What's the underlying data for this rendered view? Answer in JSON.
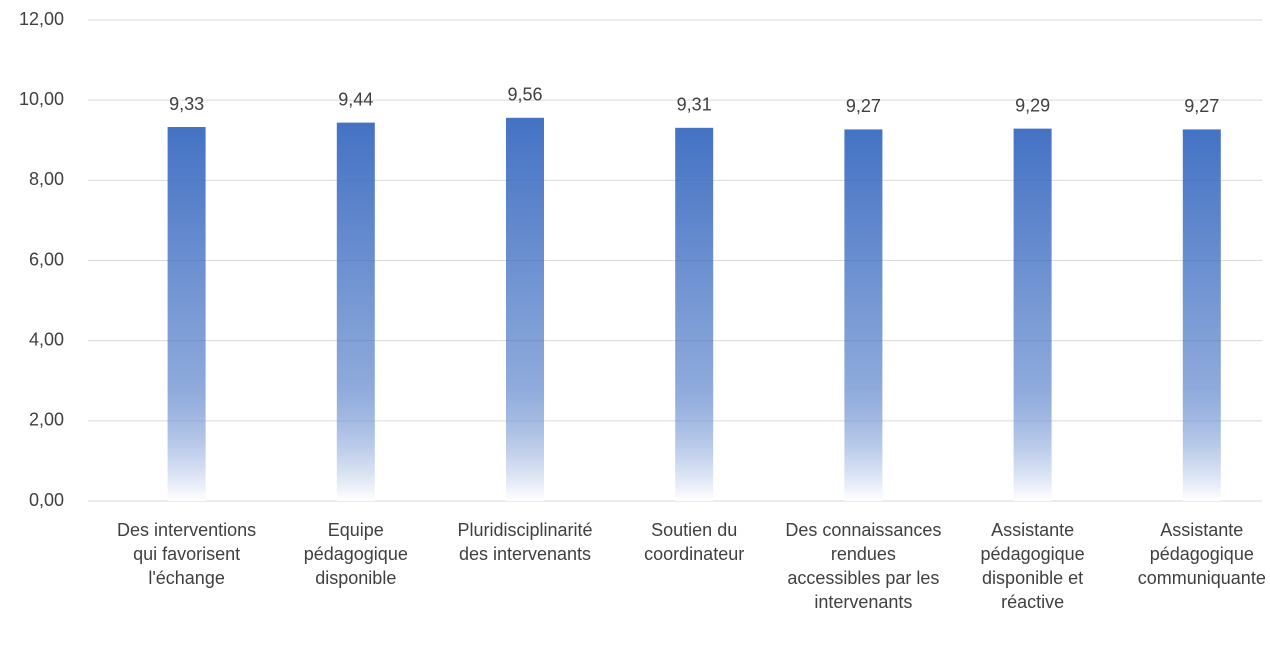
{
  "chart_data": {
    "type": "bar",
    "categories": [
      "Des interventions qui favorisent l'échange",
      "Equipe pédagogique disponible",
      "Pluridisciplinarité des intervenants",
      "Soutien du coordinateur",
      "Des connaissances rendues accessibles par les intervenants",
      "Assistante pédagogique disponible et réactive",
      "Assistante pédagogique communiquante"
    ],
    "values": [
      9.33,
      9.44,
      9.56,
      9.31,
      9.27,
      9.29,
      9.27
    ],
    "value_labels": [
      "9,33",
      "9,44",
      "9,56",
      "9,31",
      "9,27",
      "9,29",
      "9,27"
    ],
    "color": "#4472c4",
    "ylim": [
      0,
      12
    ],
    "yticks": [
      {
        "value": 0,
        "label": "0,00"
      },
      {
        "value": 2,
        "label": "2,00"
      },
      {
        "value": 4,
        "label": "4,00"
      },
      {
        "value": 6,
        "label": "6,00"
      },
      {
        "value": 8,
        "label": "8,00"
      },
      {
        "value": 10,
        "label": "10,00"
      },
      {
        "value": 12,
        "label": "12,00"
      }
    ],
    "grid": true
  }
}
